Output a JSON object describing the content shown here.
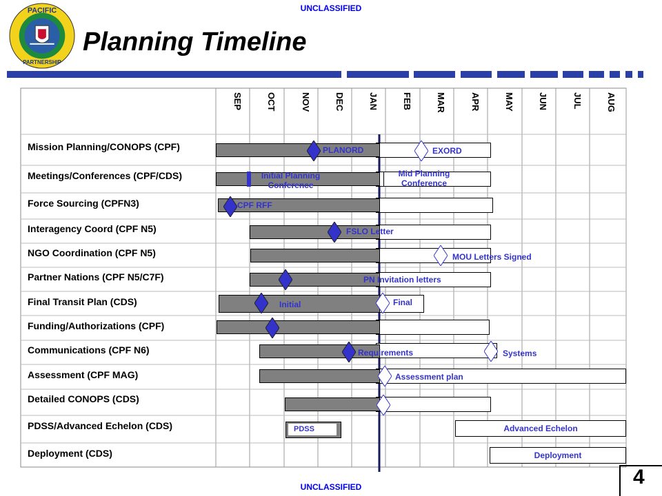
{
  "classification": {
    "top": "UNCLASSIFIED",
    "bottom": "UNCLASSIFIED"
  },
  "logo": {
    "top_text": "PACIFIC",
    "bottom_text": "PARTNERSHIP"
  },
  "title": "Planning Timeline",
  "page_number": "4",
  "months": [
    "SEP",
    "OCT",
    "NOV",
    "DEC",
    "JAN",
    "FEB",
    "MAR",
    "APR",
    "MAY",
    "JUN",
    "JUL",
    "AUG"
  ],
  "tasks": [
    "Mission Planning/CONOPS (CPF)",
    "Meetings/Conferences (CPF/CDS)",
    "Force Sourcing (CPFN3)",
    "Interagency Coord (CPF N5)",
    "NGO Coordination (CPF N5)",
    "Partner Nations (CPF N5/C7F)",
    "Final Transit Plan (CDS)",
    "Funding/Authorizations (CPF)",
    "Communications (CPF N6)",
    "Assessment (CPF MAG)",
    "Detailed CONOPS (CDS)",
    "PDSS/Advanced Echelon (CDS)",
    "Deployment (CDS)"
  ],
  "milestones": {
    "planord": "PLANORD",
    "exord": "EXORD",
    "initial_planning_conf": "Initial Planning Conference",
    "mid_planning_conf": "Mid Planning Conference",
    "cpf_rff": "CPF RFF",
    "fslo_letter": "FSLO Letter",
    "mou_letters": "MOU Letters Signed",
    "pn_invitation": "PN Invitation letters",
    "initial": "Initial",
    "final": "Final",
    "requirements": "Requirements",
    "systems": "Systems",
    "assessment_plan": "Assessment plan",
    "pdss": "PDSS",
    "advanced_echelon": "Advanced Echelon",
    "deployment": "Deployment"
  },
  "colors": {
    "header_blue": "#0000ee",
    "diamond_blue": "#3333cc",
    "bar_gray": "#808080",
    "today_line": "#1a1a5e"
  }
}
